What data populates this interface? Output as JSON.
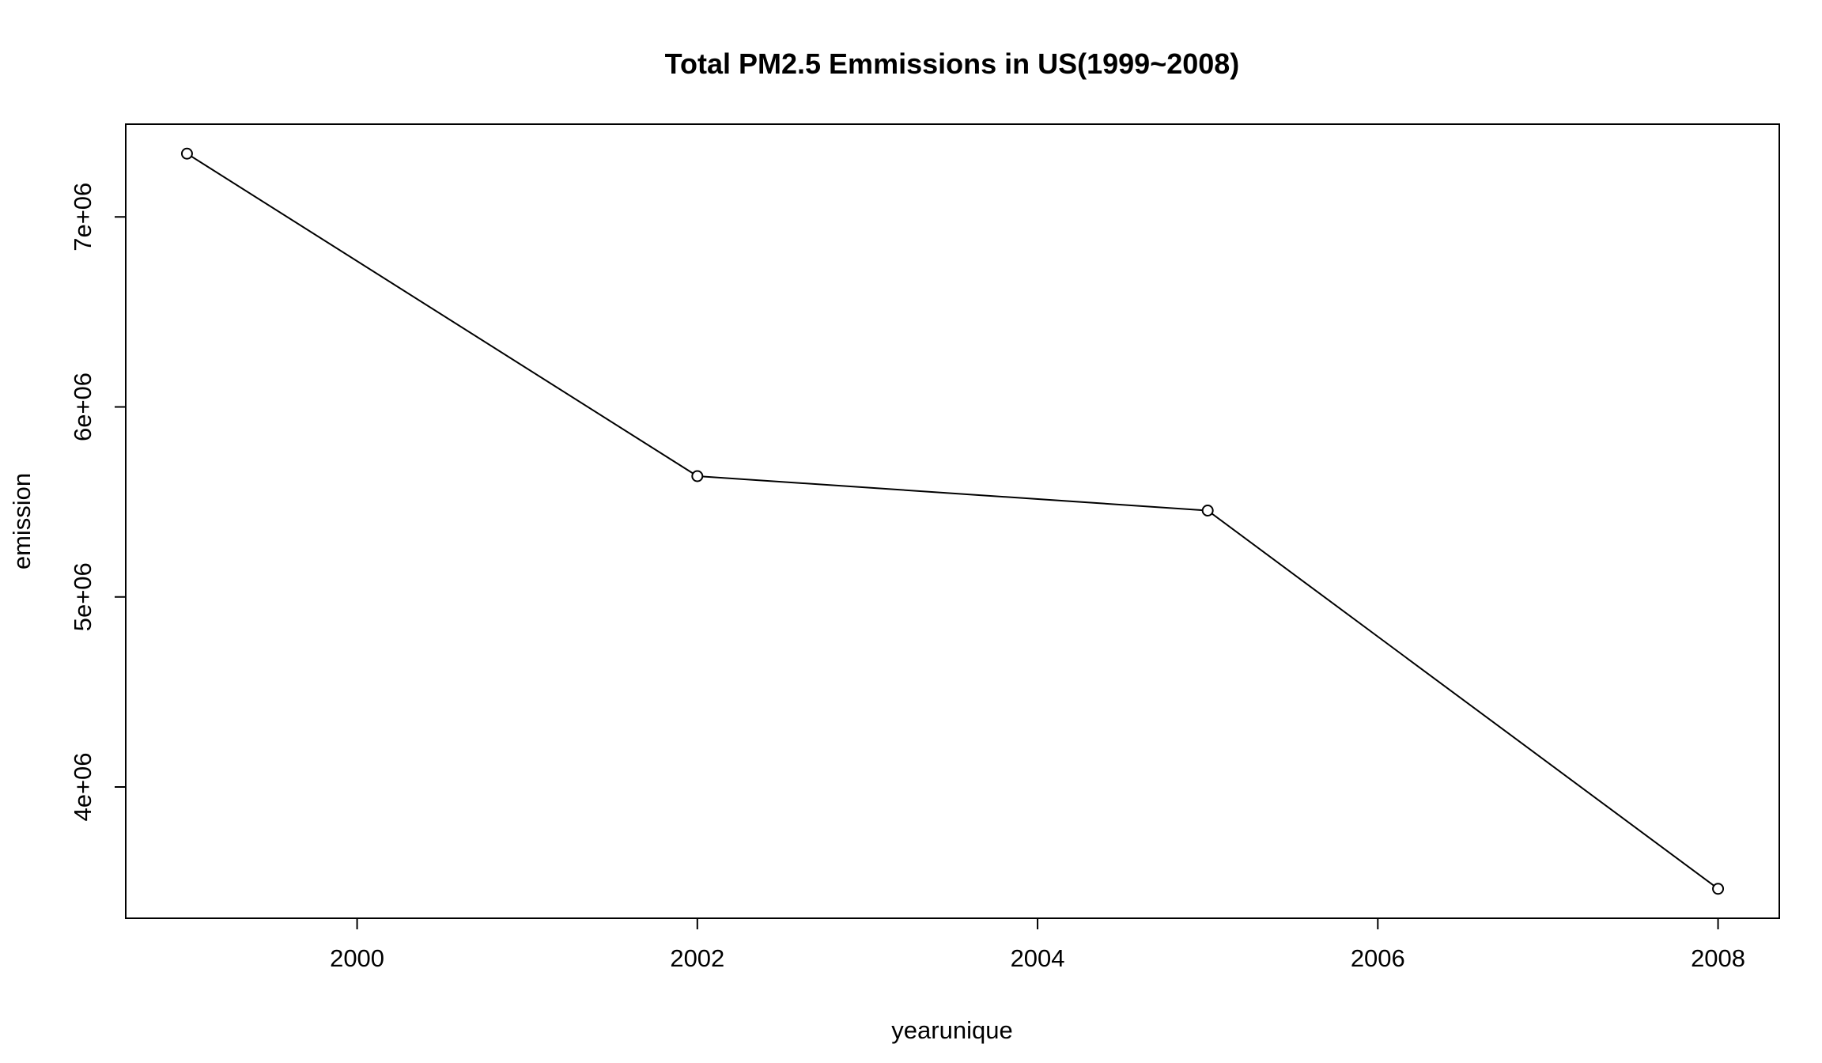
{
  "chart_data": {
    "type": "line",
    "title": "Total PM2.5 Emmissions in US(1999~2008)",
    "xlabel": "yearunique",
    "ylabel": "emission",
    "x": [
      1999,
      2002,
      2005,
      2008
    ],
    "series": [
      {
        "values": [
          7332967,
          5635780,
          5454703,
          3464206
        ]
      }
    ],
    "xlim": [
      1998.64,
      2008.36
    ],
    "ylim": [
      3309000,
      7488000
    ],
    "x_ticks": [
      2000,
      2002,
      2004,
      2006,
      2008
    ],
    "x_tick_labels": [
      "2000",
      "2002",
      "2004",
      "2006",
      "2008"
    ],
    "y_ticks": [
      4000000,
      5000000,
      6000000,
      7000000
    ],
    "y_tick_labels": [
      "4e+06",
      "5e+06",
      "6e+06",
      "7e+06"
    ],
    "marker": "open-circle",
    "grid": false,
    "legend": "none",
    "line_color": "#000000"
  }
}
